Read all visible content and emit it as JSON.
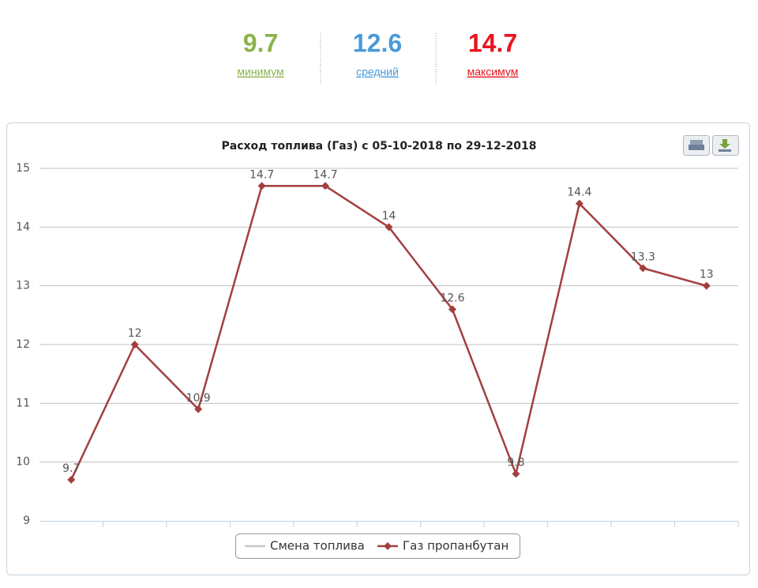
{
  "stats": [
    {
      "value": "9.7",
      "label": "минимум",
      "color": "#8ab34a"
    },
    {
      "value": "12.6",
      "label": "средний",
      "color": "#4a9ad8"
    },
    {
      "value": "14.7",
      "label": "максимум",
      "color": "#e8141e"
    }
  ],
  "chart_data": {
    "type": "line",
    "title": "Расход топлива (Газ) с 05-10-2018 по 29-12-2018",
    "categories": [
      null,
      null,
      null,
      null,
      null,
      null,
      null,
      null,
      null,
      null,
      null
    ],
    "series": [
      {
        "name": "Смена топлива",
        "color": "#c8c8c8",
        "values": [
          null,
          null,
          null,
          null,
          null,
          null,
          null,
          null,
          null,
          null,
          null
        ]
      },
      {
        "name": "Газ пропанбутан",
        "color": "#a33f3f",
        "values": [
          9.7,
          12,
          10.9,
          14.7,
          14.7,
          14,
          12.6,
          9.8,
          14.4,
          13.3,
          13
        ]
      }
    ],
    "ylim": [
      9,
      15
    ],
    "yticks": [
      9,
      10,
      11,
      12,
      13,
      14,
      15
    ],
    "grid": true,
    "legend": "bottom"
  }
}
